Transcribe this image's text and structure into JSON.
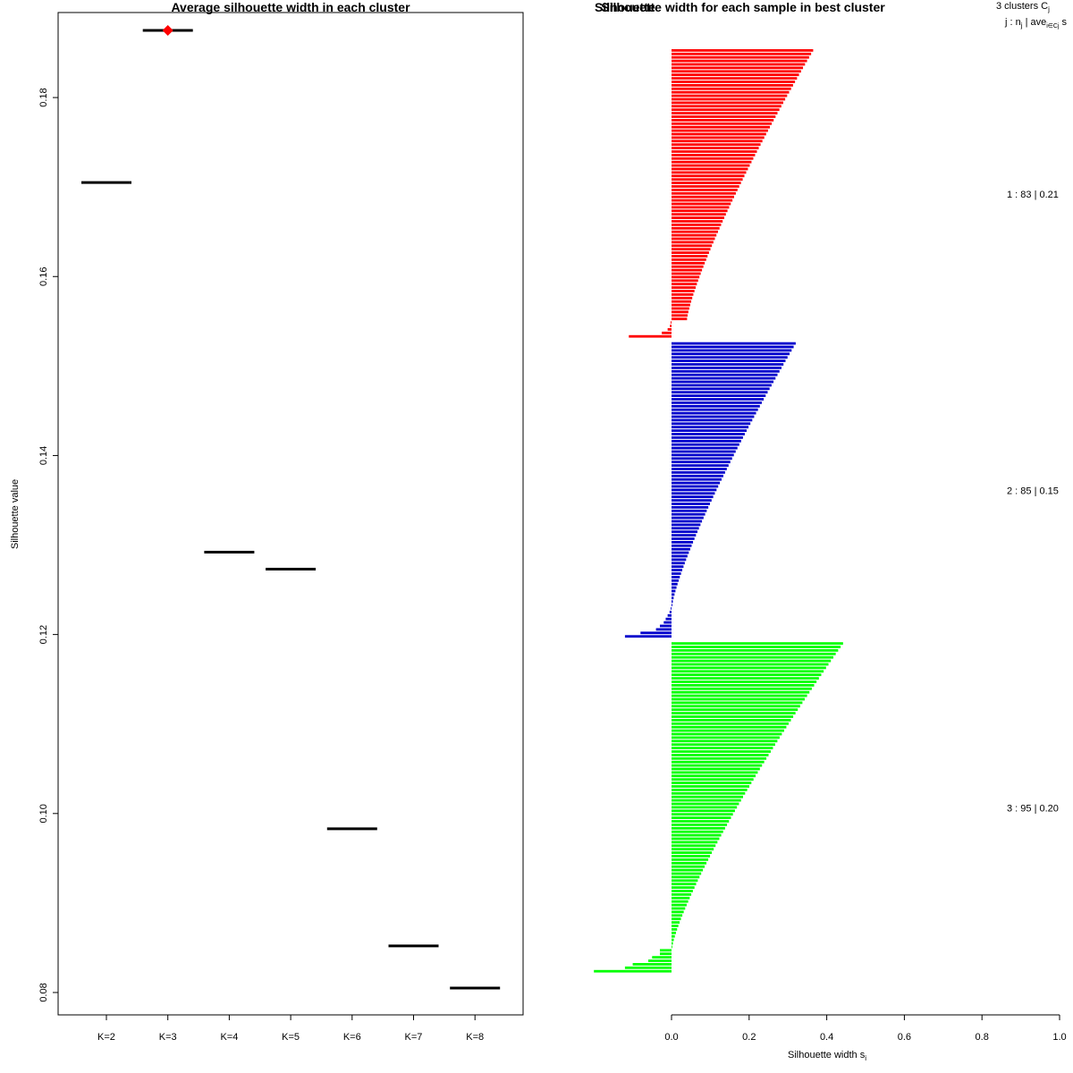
{
  "chart_data": [
    {
      "type": "line",
      "title": "Average silhouette width in each cluster",
      "xlabel": "",
      "ylabel": "Silhouette value",
      "categories": [
        "K=2",
        "K=3",
        "K=4",
        "K=5",
        "K=6",
        "K=7",
        "K=8"
      ],
      "values": [
        0.1705,
        0.1875,
        0.1292,
        0.1273,
        0.0983,
        0.0852,
        0.0805
      ],
      "best_index": 1,
      "ylim": [
        0.0775,
        0.1895
      ],
      "yticks": [
        0.08,
        0.1,
        0.12,
        0.14,
        0.16,
        0.18
      ],
      "ytick_labels": [
        "0.08",
        "0.10",
        "0.12",
        "0.14",
        "0.16",
        "0.18"
      ],
      "colors": {
        "segment": "#000000",
        "best_marker": "#ff0000"
      }
    },
    {
      "type": "bar",
      "title": "Silhouette width for each sample in best cluster",
      "overlapped_label": "Silhouette",
      "xlabel": "Silhouette width s",
      "xlabel_subscript": "i",
      "xlim": [
        0,
        1
      ],
      "xticks": [
        0.0,
        0.2,
        0.4,
        0.6,
        0.8,
        1.0
      ],
      "xtick_labels": [
        "0.0",
        "0.2",
        "0.4",
        "0.6",
        "0.8",
        "1.0"
      ],
      "header_line1": "3  clusters  C",
      "header_line1_sub": "j",
      "header_line2": "j :  n",
      "header_line2_sub": "j",
      "header_line2_rest": " | ave",
      "header_line2_sub2": "i∈Cj",
      "header_line2_end": " s",
      "clusters": [
        {
          "label": "1 :   83  |  0.21",
          "n": 83,
          "avg": 0.21,
          "color": "#ff0000",
          "max": 0.365,
          "min": 0.04,
          "negatives": [
            -0.002,
            -0.004,
            -0.01,
            -0.025,
            -0.11
          ]
        },
        {
          "label": "2 :   85  |  0.15",
          "n": 85,
          "avg": 0.15,
          "color": "#0000cc",
          "max": 0.32,
          "min": 0.002,
          "negatives": [
            -0.002,
            -0.005,
            -0.01,
            -0.015,
            -0.02,
            -0.03,
            -0.04,
            -0.08,
            -0.12
          ]
        },
        {
          "label": "3 :   95  |  0.20",
          "n": 95,
          "avg": 0.2,
          "color": "#00ff00",
          "max": 0.442,
          "min": 0.002,
          "negatives": [
            -0.03,
            -0.03,
            -0.05,
            -0.06,
            -0.1,
            -0.12,
            -0.2
          ]
        }
      ]
    }
  ]
}
